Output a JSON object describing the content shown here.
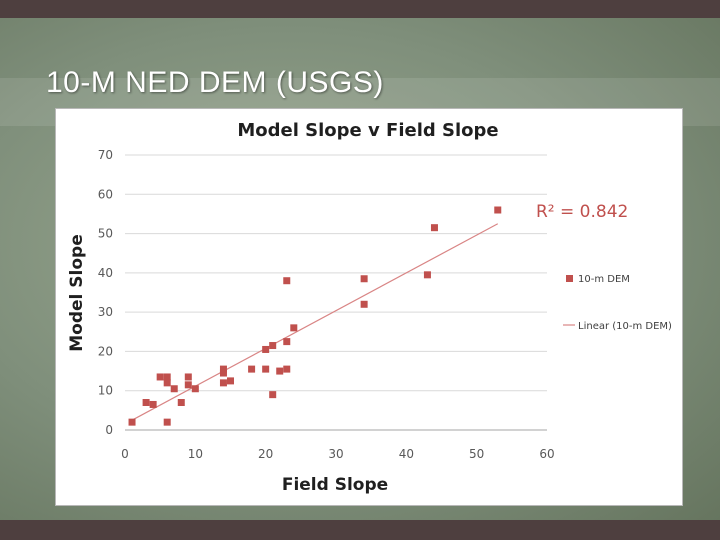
{
  "slide": {
    "title": "10-M NED DEM (USGS)"
  },
  "colors": {
    "series": "#c0504d",
    "trendline": "#d98585",
    "grid": "#d9d9d9",
    "axis_text": "#595959"
  },
  "chart_data": {
    "type": "scatter",
    "title": "Model Slope v Field Slope",
    "xlabel": "Field Slope",
    "ylabel": "Model Slope",
    "xlim": [
      0,
      60
    ],
    "ylim": [
      0,
      70
    ],
    "xticks": [
      0,
      10,
      20,
      30,
      40,
      50,
      60
    ],
    "yticks": [
      0,
      10,
      20,
      30,
      40,
      50,
      60,
      70
    ],
    "grid": "horizontal",
    "legend_position": "right",
    "annotation": "R² = 0.842",
    "series": [
      {
        "name": "10-m DEM",
        "color": "#c0504d",
        "marker": "square",
        "points": [
          [
            1,
            2
          ],
          [
            3,
            7
          ],
          [
            4,
            6.5
          ],
          [
            5,
            13.5
          ],
          [
            6,
            13.5
          ],
          [
            6,
            12
          ],
          [
            6,
            2
          ],
          [
            7,
            10.5
          ],
          [
            8,
            7
          ],
          [
            9,
            13.5
          ],
          [
            9,
            11.5
          ],
          [
            10,
            10.5
          ],
          [
            14,
            15.5
          ],
          [
            14,
            14.5
          ],
          [
            14,
            12
          ],
          [
            15,
            12.5
          ],
          [
            18,
            15.5
          ],
          [
            20,
            20.5
          ],
          [
            20,
            15.5
          ],
          [
            21,
            21.5
          ],
          [
            21,
            9
          ],
          [
            22,
            15
          ],
          [
            23,
            38
          ],
          [
            23,
            22.5
          ],
          [
            23,
            15.5
          ],
          [
            24,
            26
          ],
          [
            34,
            38.5
          ],
          [
            34,
            32
          ],
          [
            43,
            39.5
          ],
          [
            44,
            51.5
          ],
          [
            53,
            56
          ]
        ]
      }
    ],
    "trendline": {
      "name": "Linear (10-m DEM)",
      "type": "linear",
      "color": "#d98585",
      "x": [
        1,
        53
      ],
      "y": [
        2.5,
        52.5
      ]
    }
  }
}
